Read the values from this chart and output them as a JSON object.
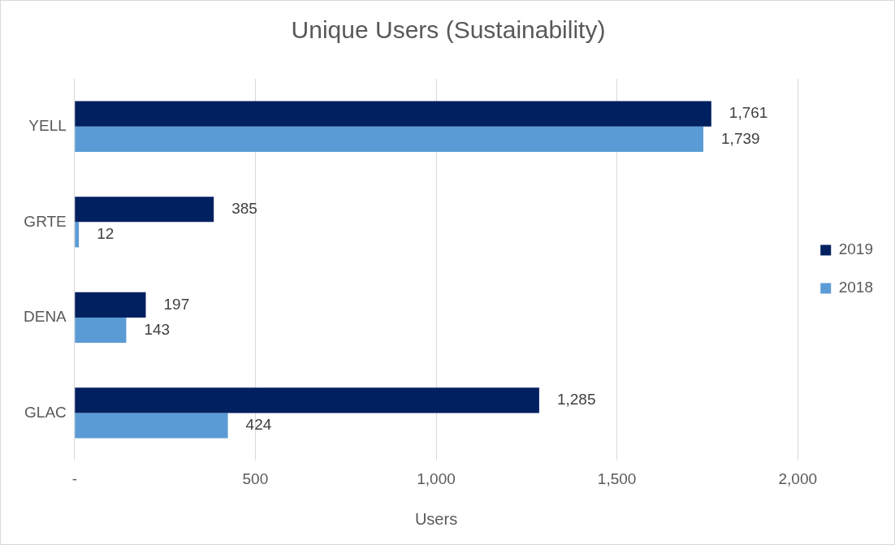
{
  "chart_data": {
    "type": "bar",
    "orientation": "horizontal",
    "title": "Unique Users (Sustainability)",
    "xlabel": "Users",
    "categories": [
      "YELL",
      "GRTE",
      "DENA",
      "GLAC"
    ],
    "series": [
      {
        "name": "2019",
        "color": "#002060",
        "values": [
          1761,
          385,
          197,
          1285
        ],
        "value_labels": [
          "1,761",
          "385",
          "197",
          "1,285"
        ]
      },
      {
        "name": "2018",
        "color": "#5b9bd5",
        "values": [
          1739,
          12,
          143,
          424
        ],
        "value_labels": [
          "1,739",
          "12",
          "143",
          "424"
        ]
      }
    ],
    "xlim": [
      0,
      2000
    ],
    "xticks": [
      {
        "value": 0,
        "label": "-"
      },
      500,
      {
        "value": 1000,
        "label": "1,000"
      },
      {
        "value": 1500,
        "label": "1,500"
      },
      {
        "value": 2000,
        "label": "2,000"
      }
    ],
    "grid": "x",
    "legend": "right"
  }
}
